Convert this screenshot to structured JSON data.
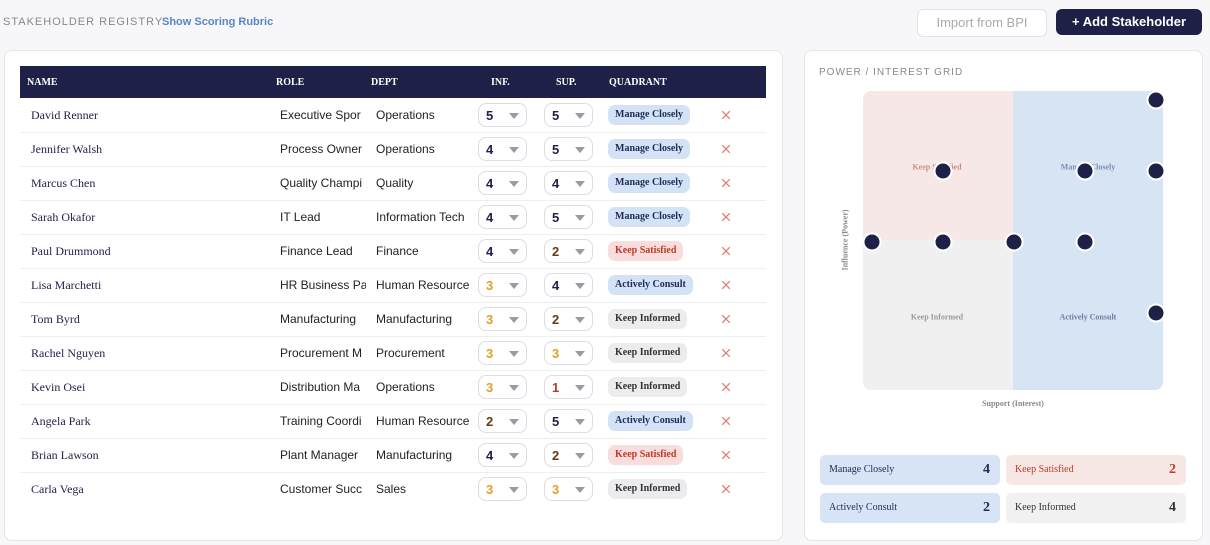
{
  "header": {
    "title": "STAKEHOLDER REGISTRY",
    "link": "Show Scoring Rubric",
    "import_button": "Import from BPI",
    "add_button": "+ Add Stakeholder"
  },
  "table": {
    "columns": [
      "NAME",
      "ROLE",
      "DEPT",
      "INF.",
      "SUP.",
      "QUADRANT"
    ],
    "rows": [
      {
        "name": "David Renner",
        "role": "Executive Spor",
        "dept": "Operations",
        "inf": 5,
        "sup": 5,
        "quadrant": "Manage Closely"
      },
      {
        "name": "Jennifer Walsh",
        "role": "Process Owner",
        "dept": "Operations",
        "inf": 4,
        "sup": 5,
        "quadrant": "Manage Closely"
      },
      {
        "name": "Marcus Chen",
        "role": "Quality Champi",
        "dept": "Quality",
        "inf": 4,
        "sup": 4,
        "quadrant": "Manage Closely"
      },
      {
        "name": "Sarah Okafor",
        "role": "IT Lead",
        "dept": "Information Tech",
        "inf": 4,
        "sup": 5,
        "quadrant": "Manage Closely"
      },
      {
        "name": "Paul Drummond",
        "role": "Finance Lead",
        "dept": "Finance",
        "inf": 4,
        "sup": 2,
        "quadrant": "Keep Satisfied"
      },
      {
        "name": "Lisa Marchetti",
        "role": "HR Business Pa",
        "dept": "Human Resource",
        "inf": 3,
        "sup": 4,
        "quadrant": "Actively Consult"
      },
      {
        "name": "Tom Byrd",
        "role": "Manufacturing",
        "dept": "Manufacturing",
        "inf": 3,
        "sup": 2,
        "quadrant": "Keep Informed"
      },
      {
        "name": "Rachel Nguyen",
        "role": "Procurement M",
        "dept": "Procurement",
        "inf": 3,
        "sup": 3,
        "quadrant": "Keep Informed"
      },
      {
        "name": "Kevin Osei",
        "role": "Distribution Ma",
        "dept": "Operations",
        "inf": 3,
        "sup": 1,
        "quadrant": "Keep Informed"
      },
      {
        "name": "Angela Park",
        "role": "Training Coordi",
        "dept": "Human Resource",
        "inf": 2,
        "sup": 5,
        "quadrant": "Actively Consult"
      },
      {
        "name": "Brian Lawson",
        "role": "Plant Manager",
        "dept": "Manufacturing",
        "inf": 4,
        "sup": 2,
        "quadrant": "Keep Satisfied"
      },
      {
        "name": "Carla Vega",
        "role": "Customer Succ",
        "dept": "Sales",
        "inf": 3,
        "sup": 3,
        "quadrant": "Keep Informed"
      }
    ]
  },
  "grid": {
    "title": "POWER / INTEREST GRID",
    "y_label": "Influence (Power)",
    "x_label": "Support (Interest)",
    "quadrants": [
      "Keep Satisfied",
      "Manage Closely",
      "Keep Informed",
      "Actively Consult"
    ]
  },
  "summary": [
    {
      "label": "Manage Closely",
      "count": 4
    },
    {
      "label": "Keep Satisfied",
      "count": 2
    },
    {
      "label": "Actively Consult",
      "count": 2
    },
    {
      "label": "Keep Informed",
      "count": 4
    }
  ]
}
